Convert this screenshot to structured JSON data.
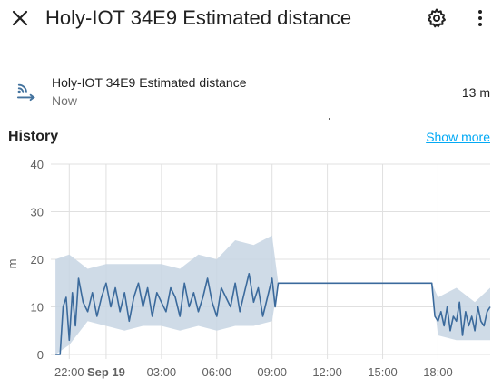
{
  "header": {
    "title": "Holy-IOT 34E9 Estimated distance",
    "close_icon": "close-icon",
    "settings_icon": "gear-icon",
    "menu_icon": "more-vertical-icon"
  },
  "state": {
    "icon": "signal-distance-icon",
    "name": "Holy-IOT 34E9 Estimated distance",
    "time": "Now",
    "value": "13 m"
  },
  "history": {
    "title": "History",
    "show_more": "Show more"
  },
  "colors": {
    "line": "#3b6a9c",
    "band": "#c7d5e3",
    "link": "#03a9f4"
  },
  "chart_data": {
    "type": "line",
    "ylabel": "m",
    "ylim": [
      0,
      40
    ],
    "yticks": [
      "0",
      "10",
      "20",
      "30",
      "40"
    ],
    "x_start": "2024-09-18T21:00",
    "x_end": "2024-09-19T20:50",
    "xticks": [
      {
        "label": "22:00",
        "t": "2024-09-18T22:00",
        "bold": false
      },
      {
        "label": "Sep 19",
        "t": "2024-09-19T00:00",
        "bold": true
      },
      {
        "label": "03:00",
        "t": "2024-09-19T03:00",
        "bold": false
      },
      {
        "label": "06:00",
        "t": "2024-09-19T06:00",
        "bold": false
      },
      {
        "label": "09:00",
        "t": "2024-09-19T09:00",
        "bold": false
      },
      {
        "label": "12:00",
        "t": "2024-09-19T12:00",
        "bold": false
      },
      {
        "label": "15:00",
        "t": "2024-09-19T15:00",
        "bold": false
      },
      {
        "label": "18:00",
        "t": "2024-09-19T18:00",
        "bold": false
      }
    ],
    "series": [
      {
        "segments": [
          {
            "x": [
              "2024-09-18T21:15",
              "2024-09-18T21:30",
              "2024-09-18T21:40",
              "2024-09-18T21:50",
              "2024-09-18T22:00",
              "2024-09-18T22:10",
              "2024-09-18T22:20",
              "2024-09-18T22:30",
              "2024-09-18T22:45",
              "2024-09-18T23:00",
              "2024-09-18T23:15",
              "2024-09-18T23:30",
              "2024-09-18T23:45",
              "2024-09-19T00:00",
              "2024-09-19T00:15",
              "2024-09-19T00:30",
              "2024-09-19T00:45",
              "2024-09-19T01:00",
              "2024-09-19T01:15",
              "2024-09-19T01:30",
              "2024-09-19T01:45",
              "2024-09-19T02:00",
              "2024-09-19T02:15",
              "2024-09-19T02:30",
              "2024-09-19T02:45",
              "2024-09-19T03:00",
              "2024-09-19T03:15",
              "2024-09-19T03:30",
              "2024-09-19T03:45",
              "2024-09-19T04:00",
              "2024-09-19T04:15",
              "2024-09-19T04:30",
              "2024-09-19T04:45",
              "2024-09-19T05:00",
              "2024-09-19T05:15",
              "2024-09-19T05:30",
              "2024-09-19T05:45",
              "2024-09-19T06:00",
              "2024-09-19T06:15",
              "2024-09-19T06:30",
              "2024-09-19T06:45",
              "2024-09-19T07:00",
              "2024-09-19T07:15",
              "2024-09-19T07:30",
              "2024-09-19T07:45",
              "2024-09-19T08:00",
              "2024-09-19T08:15",
              "2024-09-19T08:30",
              "2024-09-19T08:45",
              "2024-09-19T09:00",
              "2024-09-19T09:10",
              "2024-09-19T09:20",
              "2024-09-19T17:40",
              "2024-09-19T17:50",
              "2024-09-19T18:00",
              "2024-09-19T18:10",
              "2024-09-19T18:20",
              "2024-09-19T18:30",
              "2024-09-19T18:40",
              "2024-09-19T18:50",
              "2024-09-19T19:00",
              "2024-09-19T19:10",
              "2024-09-19T19:20",
              "2024-09-19T19:30",
              "2024-09-19T19:40",
              "2024-09-19T19:50",
              "2024-09-19T20:00",
              "2024-09-19T20:10",
              "2024-09-19T20:20",
              "2024-09-19T20:30",
              "2024-09-19T20:40",
              "2024-09-19T20:50"
            ],
            "y": [
              0,
              0,
              10,
              12,
              3,
              13,
              6,
              16,
              11,
              9,
              13,
              8,
              12,
              15,
              10,
              14,
              9,
              13,
              7,
              12,
              15,
              10,
              14,
              8,
              13,
              11,
              9,
              14,
              12,
              8,
              15,
              10,
              13,
              9,
              12,
              16,
              11,
              8,
              14,
              12,
              10,
              15,
              9,
              13,
              17,
              11,
              14,
              8,
              12,
              16,
              10,
              15,
              15,
              8,
              7,
              9,
              6,
              10,
              5,
              8,
              7,
              11,
              4,
              9,
              6,
              8,
              5,
              10,
              7,
              6,
              9,
              10
            ]
          }
        ],
        "band": {
          "x": [
            "2024-09-18T21:15",
            "2024-09-18T22:00",
            "2024-09-18T23:00",
            "2024-09-19T00:00",
            "2024-09-19T01:00",
            "2024-09-19T02:00",
            "2024-09-19T03:00",
            "2024-09-19T04:00",
            "2024-09-19T05:00",
            "2024-09-19T06:00",
            "2024-09-19T07:00",
            "2024-09-19T08:00",
            "2024-09-19T09:00",
            "2024-09-19T09:20",
            "2024-09-19T17:40",
            "2024-09-19T18:00",
            "2024-09-19T19:00",
            "2024-09-19T20:00",
            "2024-09-19T20:50"
          ],
          "low": [
            0,
            2,
            7,
            6,
            5,
            6,
            6,
            5,
            6,
            5,
            6,
            6,
            7,
            15,
            15,
            4,
            3,
            3,
            3
          ],
          "high": [
            20,
            21,
            18,
            19,
            19,
            19,
            19,
            18,
            21,
            20,
            24,
            23,
            25,
            15,
            15,
            12,
            14,
            11,
            14
          ]
        }
      }
    ]
  }
}
